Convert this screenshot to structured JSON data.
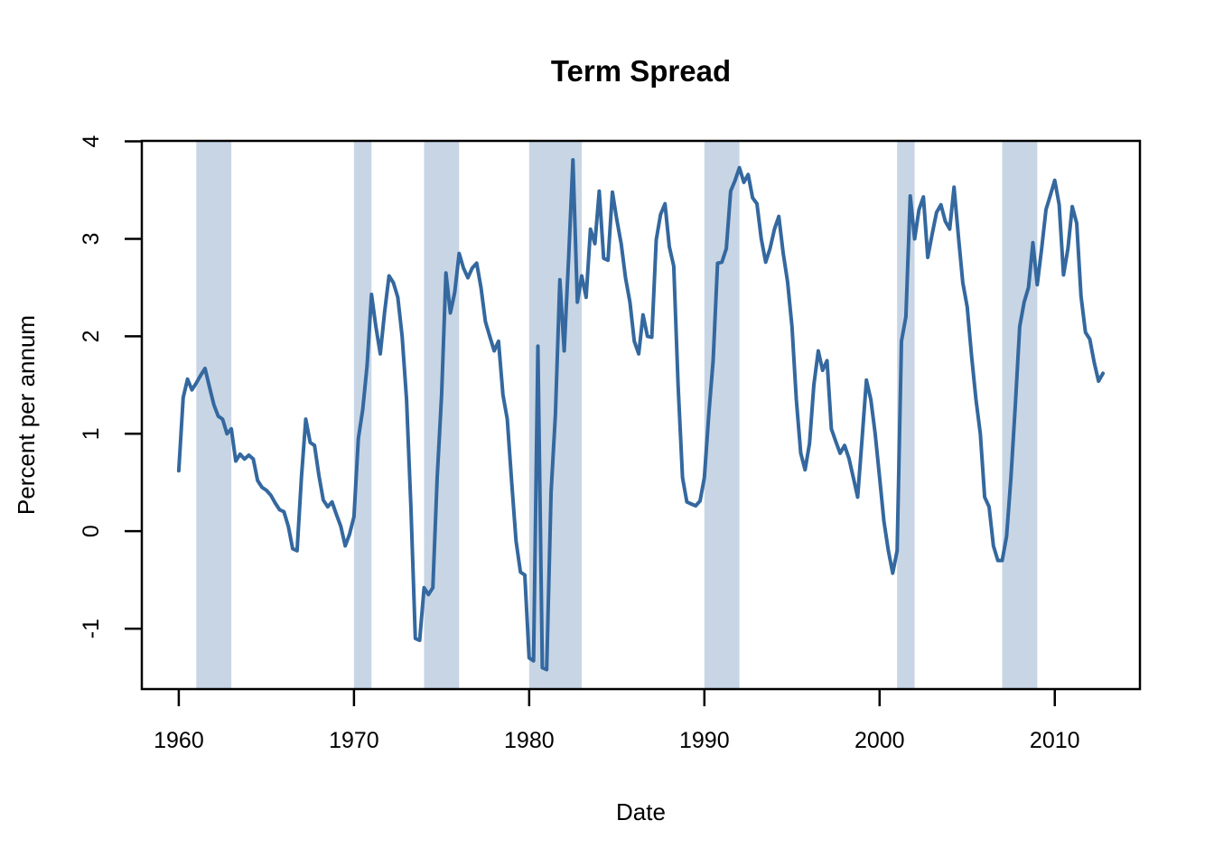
{
  "title": "Term Spread",
  "colors": {
    "line": "#34689f",
    "recession_band": "#c8d5e5",
    "axis": "#000000",
    "background": "#ffffff"
  },
  "chart_data": {
    "type": "line",
    "title": "Term Spread",
    "xlabel": "Date",
    "ylabel": "Percent per annum",
    "grid": false,
    "legend": false,
    "x_start": 1960.0,
    "x_step": 0.25,
    "xlim": [
      1957.89,
      2014.86
    ],
    "ylim": [
      -1.62,
      4.005
    ],
    "x_ticks": [
      1960,
      1970,
      1980,
      1990,
      2000,
      2010
    ],
    "y_ticks": [
      -1,
      0,
      1,
      2,
      3,
      4
    ],
    "recession_bands": [
      [
        1961,
        1963
      ],
      [
        1970,
        1971
      ],
      [
        1974,
        1976
      ],
      [
        1980,
        1983
      ],
      [
        1990,
        1992
      ],
      [
        2001,
        2002
      ],
      [
        2007,
        2009
      ]
    ],
    "series": [
      {
        "name": "term_spread_pct_per_annum",
        "values": [
          0.62,
          1.37,
          1.56,
          1.45,
          1.52,
          1.6,
          1.67,
          1.48,
          1.3,
          1.18,
          1.15,
          1.0,
          1.05,
          0.72,
          0.79,
          0.74,
          0.78,
          0.74,
          0.52,
          0.45,
          0.42,
          0.37,
          0.29,
          0.22,
          0.2,
          0.05,
          -0.18,
          -0.2,
          0.55,
          1.15,
          0.91,
          0.88,
          0.57,
          0.32,
          0.25,
          0.3,
          0.17,
          0.05,
          -0.15,
          -0.03,
          0.15,
          0.95,
          1.25,
          1.7,
          2.43,
          2.1,
          1.82,
          2.25,
          2.62,
          2.55,
          2.4,
          2.0,
          1.35,
          0.25,
          -1.1,
          -1.12,
          -0.58,
          -0.65,
          -0.58,
          0.55,
          1.4,
          2.65,
          2.24,
          2.45,
          2.85,
          2.7,
          2.6,
          2.7,
          2.75,
          2.5,
          2.15,
          2.0,
          1.85,
          1.95,
          1.4,
          1.15,
          0.5,
          -0.1,
          -0.42,
          -0.45,
          -1.3,
          -1.33,
          1.9,
          -1.4,
          -1.42,
          0.4,
          1.2,
          2.58,
          1.85,
          2.8,
          3.81,
          2.35,
          2.62,
          2.4,
          3.1,
          2.95,
          3.49,
          2.8,
          2.78,
          3.48,
          3.2,
          2.95,
          2.6,
          2.35,
          1.95,
          1.82,
          2.22,
          2.0,
          1.99,
          2.99,
          3.25,
          3.36,
          2.92,
          2.72,
          1.5,
          0.55,
          0.3,
          0.28,
          0.26,
          0.31,
          0.55,
          1.2,
          1.75,
          2.75,
          2.76,
          2.9,
          3.49,
          3.6,
          3.73,
          3.58,
          3.66,
          3.42,
          3.36,
          3.0,
          2.76,
          2.9,
          3.1,
          3.23,
          2.85,
          2.56,
          2.1,
          1.35,
          0.8,
          0.63,
          0.9,
          1.5,
          1.85,
          1.65,
          1.75,
          1.05,
          0.92,
          0.8,
          0.88,
          0.75,
          0.55,
          0.35,
          0.95,
          1.55,
          1.35,
          1.0,
          0.55,
          0.1,
          -0.2,
          -0.43,
          -0.2,
          1.95,
          2.2,
          3.44,
          3.0,
          3.3,
          3.43,
          2.81,
          3.05,
          3.27,
          3.35,
          3.18,
          3.1,
          3.53,
          3.02,
          2.55,
          2.3,
          1.8,
          1.35,
          1.0,
          0.35,
          0.25,
          -0.15,
          -0.3,
          -0.3,
          -0.05,
          0.55,
          1.3,
          2.1,
          2.35,
          2.5,
          2.96,
          2.53,
          2.9,
          3.3,
          3.45,
          3.6,
          3.35,
          2.63,
          2.9,
          3.33,
          3.16,
          2.41,
          2.04,
          1.97,
          1.73,
          1.54,
          1.62
        ]
      }
    ]
  }
}
